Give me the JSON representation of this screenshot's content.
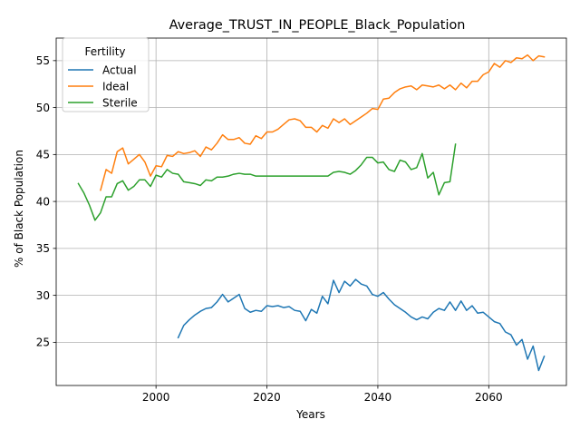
{
  "chart_data": {
    "type": "line",
    "title": "Average_TRUST_IN_PEOPLE_Black_Population",
    "xlabel": "Years",
    "ylabel": "% of Black Population",
    "xlim": [
      1982,
      2074
    ],
    "ylim": [
      20.4,
      57.4
    ],
    "xticks": [
      2000,
      2020,
      2040,
      2060
    ],
    "yticks": [
      25,
      30,
      35,
      40,
      45,
      50,
      55
    ],
    "grid": true,
    "legend": {
      "title": "Fertility",
      "placement": "top-left"
    },
    "series": [
      {
        "name": "Actual",
        "color": "#1f77b4",
        "x": [
          2004,
          2005,
          2006,
          2007,
          2008,
          2009,
          2010,
          2011,
          2012,
          2013,
          2014,
          2015,
          2016,
          2017,
          2018,
          2019,
          2020,
          2021,
          2022,
          2023,
          2024,
          2025,
          2026,
          2027,
          2028,
          2029,
          2030,
          2031,
          2032,
          2033,
          2034,
          2035,
          2036,
          2037,
          2038,
          2039,
          2040,
          2041,
          2042,
          2043,
          2044,
          2045,
          2046,
          2047,
          2048,
          2049,
          2050,
          2051,
          2052,
          2053,
          2054,
          2055,
          2056,
          2057,
          2058,
          2059,
          2060,
          2061,
          2062,
          2063,
          2064,
          2065,
          2066,
          2067,
          2068,
          2069,
          2070
        ],
        "values": [
          25.5,
          26.8,
          27.4,
          27.9,
          28.3,
          28.6,
          28.7,
          29.3,
          30.1,
          29.3,
          29.7,
          30.1,
          28.6,
          28.2,
          28.4,
          28.3,
          28.9,
          28.8,
          28.9,
          28.7,
          28.8,
          28.4,
          28.3,
          27.3,
          28.5,
          28.1,
          29.9,
          29.1,
          31.6,
          30.3,
          31.5,
          31.0,
          31.7,
          31.2,
          31.0,
          30.1,
          29.9,
          30.3,
          29.6,
          29.0,
          28.6,
          28.2,
          27.7,
          27.4,
          27.7,
          27.5,
          28.2,
          28.6,
          28.4,
          29.3,
          28.4,
          29.4,
          28.4,
          28.9,
          28.1,
          28.2,
          27.7,
          27.2,
          27.0,
          26.1,
          25.8,
          24.7,
          25.3,
          23.2,
          24.6,
          22.0,
          23.5
        ]
      },
      {
        "name": "Ideal",
        "color": "#ff7f0e",
        "x": [
          1990,
          1991,
          1992,
          1993,
          1994,
          1995,
          1996,
          1997,
          1998,
          1999,
          2000,
          2001,
          2002,
          2003,
          2004,
          2005,
          2006,
          2007,
          2008,
          2009,
          2010,
          2011,
          2012,
          2013,
          2014,
          2015,
          2016,
          2017,
          2018,
          2019,
          2020,
          2021,
          2022,
          2023,
          2024,
          2025,
          2026,
          2027,
          2028,
          2029,
          2030,
          2031,
          2032,
          2033,
          2034,
          2035,
          2036,
          2037,
          2038,
          2039,
          2040,
          2041,
          2042,
          2043,
          2044,
          2045,
          2046,
          2047,
          2048,
          2049,
          2050,
          2051,
          2052,
          2053,
          2054,
          2055,
          2056,
          2057,
          2058,
          2059,
          2060,
          2061,
          2062,
          2063,
          2064,
          2065,
          2066,
          2067,
          2068,
          2069,
          2070
        ],
        "values": [
          41.2,
          43.4,
          43.0,
          45.3,
          45.7,
          44.0,
          44.5,
          45.0,
          44.2,
          42.7,
          43.8,
          43.7,
          44.9,
          44.8,
          45.3,
          45.1,
          45.2,
          45.4,
          44.8,
          45.8,
          45.5,
          46.2,
          47.1,
          46.6,
          46.6,
          46.8,
          46.2,
          46.1,
          47.0,
          46.7,
          47.4,
          47.4,
          47.7,
          48.2,
          48.7,
          48.8,
          48.6,
          47.9,
          47.9,
          47.4,
          48.1,
          47.8,
          48.8,
          48.4,
          48.8,
          48.2,
          48.6,
          49.0,
          49.4,
          49.9,
          49.8,
          50.9,
          51.0,
          51.6,
          52.0,
          52.2,
          52.3,
          51.9,
          52.4,
          52.3,
          52.2,
          52.4,
          52.0,
          52.4,
          51.9,
          52.6,
          52.1,
          52.8,
          52.8,
          53.5,
          53.8,
          54.7,
          54.3,
          55.0,
          54.8,
          55.3,
          55.2,
          55.6,
          55.0,
          55.5,
          55.4
        ]
      },
      {
        "name": "Sterile",
        "color": "#2ca02c",
        "x": [
          1986,
          1987,
          1988,
          1989,
          1990,
          1991,
          1992,
          1993,
          1994,
          1995,
          1996,
          1997,
          1998,
          1999,
          2000,
          2001,
          2002,
          2003,
          2004,
          2005,
          2006,
          2007,
          2008,
          2009,
          2010,
          2011,
          2012,
          2013,
          2014,
          2015,
          2016,
          2017,
          2018,
          2019,
          2020,
          2021,
          2022,
          2023,
          2024,
          2025,
          2026,
          2027,
          2028,
          2029,
          2030,
          2031,
          2032,
          2033,
          2034,
          2035,
          2036,
          2037,
          2038,
          2039,
          2040,
          2041,
          2042,
          2043,
          2044,
          2045,
          2046,
          2047,
          2048,
          2049,
          2050,
          2051,
          2052,
          2053,
          2054
        ],
        "values": [
          41.9,
          40.9,
          39.6,
          38.0,
          38.8,
          40.5,
          40.5,
          41.9,
          42.2,
          41.2,
          41.6,
          42.3,
          42.3,
          41.6,
          42.8,
          42.6,
          43.4,
          43.0,
          42.9,
          42.1,
          42.0,
          41.9,
          41.7,
          42.3,
          42.2,
          42.6,
          42.6,
          42.7,
          42.9,
          43.0,
          42.9,
          42.9,
          42.7,
          42.7,
          42.7,
          42.7,
          42.7,
          42.7,
          42.7,
          42.7,
          42.7,
          42.7,
          42.7,
          42.7,
          42.7,
          42.7,
          43.1,
          43.2,
          43.1,
          42.9,
          43.3,
          43.9,
          44.7,
          44.7,
          44.1,
          44.2,
          43.4,
          43.2,
          44.4,
          44.2,
          43.4,
          43.6,
          45.1,
          42.5,
          43.1,
          40.7,
          42.0,
          42.1,
          46.1
        ]
      }
    ]
  }
}
